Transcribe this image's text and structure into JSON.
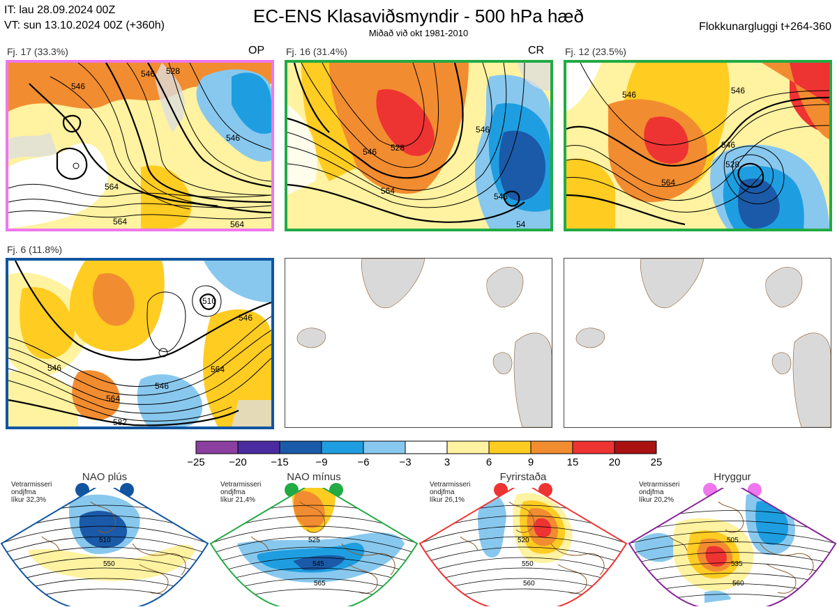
{
  "header": {
    "issue_time": "IT: lau 28.09.2024 00Z",
    "valid_time": "VT: sun 13.10.2024 00Z  (+360h)",
    "title": "EC-ENS Klasaviðsmyndir - 500 hPa hæð",
    "subtitle": "Miðað við okt 1981-2010",
    "window": "Flokkunargluggi t+264-360"
  },
  "panels": [
    {
      "label": "Fj. 17 (33.3%)",
      "tag": "OP",
      "border": "#ee77ee",
      "contours": [
        "546",
        "528",
        "546",
        "564",
        "546",
        "564",
        "564"
      ]
    },
    {
      "label": "Fj. 16 (31.4%)",
      "tag": "CR",
      "border": "#22aa44",
      "contours": [
        "546",
        "528",
        "546",
        "564",
        "546",
        "54"
      ]
    },
    {
      "label": "Fj. 12 (23.5%)",
      "tag": "",
      "border": "#22aa44",
      "contours": [
        "546",
        "546",
        "564",
        "546",
        "528"
      ]
    },
    {
      "label": "Fj. 6 (11.8%)",
      "tag": "",
      "border": "#1155a0",
      "contours": [
        "510",
        "546",
        "546",
        "564",
        "546",
        "564",
        "582"
      ]
    }
  ],
  "colorbar": {
    "colors": [
      "#8b3fa0",
      "#4b2ca0",
      "#1a5aa8",
      "#1e9ee0",
      "#88c8ee",
      "#ffffff",
      "#fff2a0",
      "#ffcc22",
      "#f28c30",
      "#ee3333",
      "#aa1111"
    ],
    "ticks": [
      "−25",
      "−20",
      "−15",
      "−9",
      "−6",
      "−3",
      "3",
      "6",
      "9",
      "15",
      "20",
      "25"
    ]
  },
  "regimes": [
    {
      "name": "NAO plús",
      "stat_line1": "Vetrarmisseri",
      "stat_line2": "ondjfma",
      "stat_line3": "líkur 32,3%",
      "color": "#1155a0",
      "dot": "#1155a0",
      "contours": [
        "510",
        "550"
      ]
    },
    {
      "name": "NAO mínus",
      "stat_line1": "Vetrarmisseri",
      "stat_line2": "ondjfma",
      "stat_line3": "líkur 21,4%",
      "color": "#22aa44",
      "dot": "#22aa44",
      "contours": [
        "525",
        "545",
        "565"
      ]
    },
    {
      "name": "Fyrirstaða",
      "stat_line1": "Vetrarmisseri",
      "stat_line2": "ondjfma",
      "stat_line3": "líkur 26,1%",
      "color": "#ee3333",
      "dot": "#ee3333",
      "contours": [
        "520",
        "550",
        "560"
      ]
    },
    {
      "name": "Hryggur",
      "stat_line1": "Vetrarmisseri",
      "stat_line2": "ondjfma",
      "stat_line3": "líkur 20,2%",
      "color": "#882299",
      "dot": "#ee77ee",
      "contours": [
        "505",
        "535",
        "560"
      ]
    }
  ]
}
